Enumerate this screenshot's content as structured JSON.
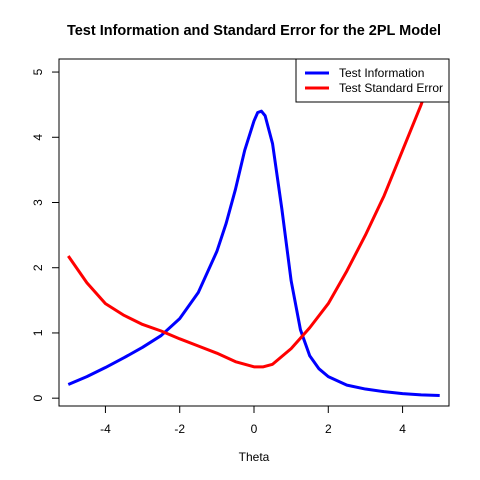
{
  "chart_data": {
    "type": "line",
    "title": "Test Information and Standard Error for the 2PL Model",
    "xlabel": "Theta",
    "ylabel": "",
    "xlim": [
      -5.25,
      5.25
    ],
    "ylim": [
      -0.12,
      5.2
    ],
    "x_ticks": [
      -4,
      -2,
      0,
      2,
      4
    ],
    "y_ticks": [
      0,
      1,
      2,
      3,
      4,
      5
    ],
    "x_tick_labels": [
      "-4",
      "-2",
      "0",
      "2",
      "4"
    ],
    "y_tick_labels": [
      "0",
      "1",
      "2",
      "3",
      "4",
      "5"
    ],
    "grid": false,
    "legend_position": "top-right",
    "series": [
      {
        "name": "Test Information",
        "color": "#0000ff",
        "x": [
          -5.0,
          -4.5,
          -4.0,
          -3.5,
          -3.0,
          -2.5,
          -2.0,
          -1.5,
          -1.0,
          -0.75,
          -0.5,
          -0.25,
          0.0,
          0.1,
          0.2,
          0.3,
          0.5,
          0.75,
          1.0,
          1.25,
          1.5,
          1.75,
          2.0,
          2.5,
          3.0,
          3.5,
          4.0,
          4.5,
          5.0
        ],
        "y": [
          0.21,
          0.33,
          0.47,
          0.62,
          0.78,
          0.96,
          1.22,
          1.62,
          2.25,
          2.68,
          3.2,
          3.8,
          4.25,
          4.38,
          4.4,
          4.33,
          3.9,
          2.9,
          1.8,
          1.05,
          0.65,
          0.45,
          0.33,
          0.2,
          0.14,
          0.1,
          0.07,
          0.05,
          0.04
        ]
      },
      {
        "name": "Test Standard Error",
        "color": "#ff0000",
        "x": [
          -5.0,
          -4.5,
          -4.0,
          -3.5,
          -3.0,
          -2.5,
          -2.0,
          -1.5,
          -1.0,
          -0.5,
          0.0,
          0.25,
          0.5,
          1.0,
          1.5,
          2.0,
          2.5,
          3.0,
          3.5,
          4.0,
          4.5,
          4.75
        ],
        "y": [
          2.18,
          1.77,
          1.45,
          1.27,
          1.13,
          1.03,
          0.91,
          0.8,
          0.69,
          0.56,
          0.48,
          0.48,
          0.52,
          0.76,
          1.08,
          1.45,
          1.95,
          2.5,
          3.1,
          3.8,
          4.5,
          4.9
        ]
      }
    ]
  }
}
